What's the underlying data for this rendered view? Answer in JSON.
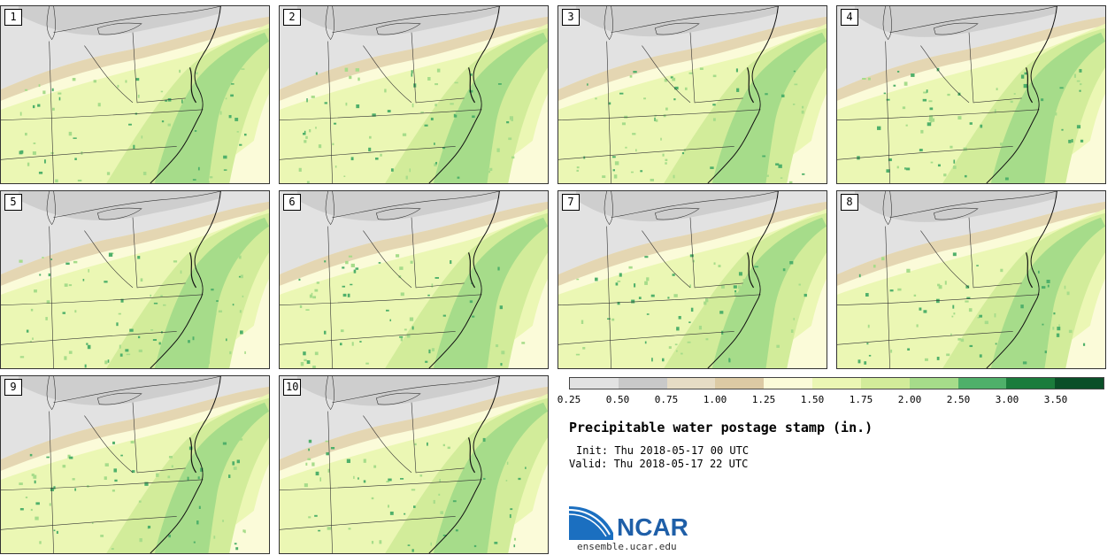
{
  "panels": [
    {
      "label": "1"
    },
    {
      "label": "2"
    },
    {
      "label": "3"
    },
    {
      "label": "4"
    },
    {
      "label": "5"
    },
    {
      "label": "6"
    },
    {
      "label": "7"
    },
    {
      "label": "8"
    },
    {
      "label": "9"
    },
    {
      "label": "10"
    }
  ],
  "colorbar": {
    "colors": [
      "#e2e2e2",
      "#c9c9c9",
      "#e6dcc5",
      "#dccaa4",
      "#fbfbd9",
      "#ebf7b4",
      "#d2ec9a",
      "#a6dc8a",
      "#4fb06a",
      "#1b7c3c",
      "#0a4f28",
      "#0a2aa0"
    ],
    "ticks": [
      "0.25",
      "0.50",
      "0.75",
      "1.00",
      "1.25",
      "1.50",
      "1.75",
      "2.00",
      "2.50",
      "3.00",
      "3.50"
    ]
  },
  "title": "Precipitable water postage stamp (in.)",
  "init": "Init: Thu 2018-05-17 00 UTC",
  "valid": "Valid: Thu 2018-05-17 22 UTC",
  "logo": {
    "word": "NCAR",
    "url": "ensemble.ucar.edu"
  }
}
